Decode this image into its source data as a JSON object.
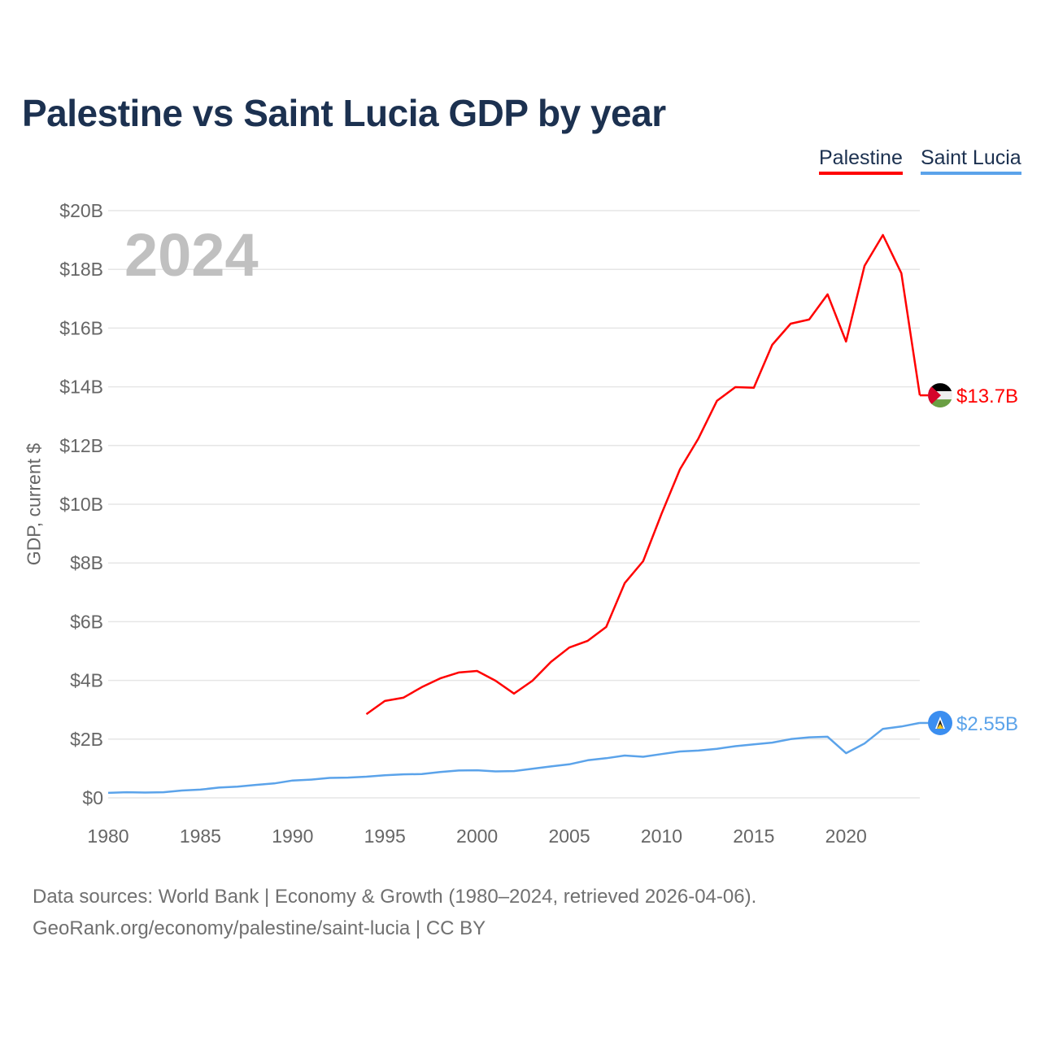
{
  "title": "Palestine vs Saint Lucia GDP by year",
  "legend": [
    {
      "name": "Palestine",
      "color": "#ff0000"
    },
    {
      "name": "Saint Lucia",
      "color": "#5ba3ea"
    }
  ],
  "year_label": "2024",
  "footer": {
    "line1": "Data sources: World Bank | Economy & Growth (1980–2024, retrieved 2026-04-06).",
    "line2": "GeoRank.org/economy/palestine/saint-lucia | CC BY"
  },
  "chart_data": {
    "type": "line",
    "title": "Palestine vs Saint Lucia GDP by year",
    "xlabel": "",
    "ylabel": "GDP, current $",
    "xlim": [
      1980,
      2024
    ],
    "ylim": [
      0,
      20
    ],
    "x_ticks": [
      1980,
      1985,
      1990,
      1995,
      2000,
      2005,
      2010,
      2015,
      2020
    ],
    "x_tick_labels": [
      "1980",
      "1985",
      "1990",
      "1995",
      "2000",
      "2005",
      "2010",
      "2015",
      "2020"
    ],
    "y_ticks": [
      0,
      2,
      4,
      6,
      8,
      10,
      12,
      14,
      16,
      18,
      20
    ],
    "y_tick_labels": [
      "$0",
      "$2B",
      "$4B",
      "$6B",
      "$8B",
      "$10B",
      "$12B",
      "$14B",
      "$16B",
      "$18B",
      "$20B"
    ],
    "grid": true,
    "legend_position": "top-right",
    "series": [
      {
        "name": "Palestine",
        "color": "#ff0000",
        "end_label": "$13.7B",
        "flag": "palestine-flag",
        "x": [
          1994,
          1995,
          1996,
          1997,
          1998,
          1999,
          2000,
          2001,
          2002,
          2003,
          2004,
          2005,
          2006,
          2007,
          2008,
          2009,
          2010,
          2011,
          2012,
          2013,
          2014,
          2015,
          2016,
          2017,
          2018,
          2019,
          2020,
          2021,
          2022,
          2023,
          2024
        ],
        "values": [
          2.85,
          3.3,
          3.41,
          3.77,
          4.07,
          4.27,
          4.32,
          3.99,
          3.55,
          3.99,
          4.63,
          5.12,
          5.35,
          5.82,
          7.31,
          8.06,
          9.68,
          11.19,
          12.24,
          13.52,
          13.99,
          13.97,
          15.43,
          16.15,
          16.29,
          17.15,
          15.54,
          18.12,
          19.17,
          17.87,
          13.71
        ]
      },
      {
        "name": "Saint Lucia",
        "color": "#5ba3ea",
        "end_label": "$2.55B",
        "flag": "saint-lucia-flag",
        "x": [
          1980,
          1981,
          1982,
          1983,
          1984,
          1985,
          1986,
          1987,
          1988,
          1989,
          1990,
          1991,
          1992,
          1993,
          1994,
          1995,
          1996,
          1997,
          1998,
          1999,
          2000,
          2001,
          2002,
          2003,
          2004,
          2005,
          2006,
          2007,
          2008,
          2009,
          2010,
          2011,
          2012,
          2013,
          2014,
          2015,
          2016,
          2017,
          2018,
          2019,
          2020,
          2021,
          2022,
          2023,
          2024
        ],
        "values": [
          0.17,
          0.19,
          0.18,
          0.19,
          0.25,
          0.28,
          0.35,
          0.38,
          0.44,
          0.49,
          0.59,
          0.62,
          0.68,
          0.69,
          0.72,
          0.77,
          0.8,
          0.81,
          0.88,
          0.93,
          0.94,
          0.9,
          0.91,
          0.99,
          1.07,
          1.14,
          1.28,
          1.35,
          1.44,
          1.4,
          1.49,
          1.58,
          1.61,
          1.67,
          1.76,
          1.82,
          1.88,
          2.0,
          2.06,
          2.08,
          1.52,
          1.85,
          2.35,
          2.43,
          2.55
        ]
      }
    ]
  }
}
